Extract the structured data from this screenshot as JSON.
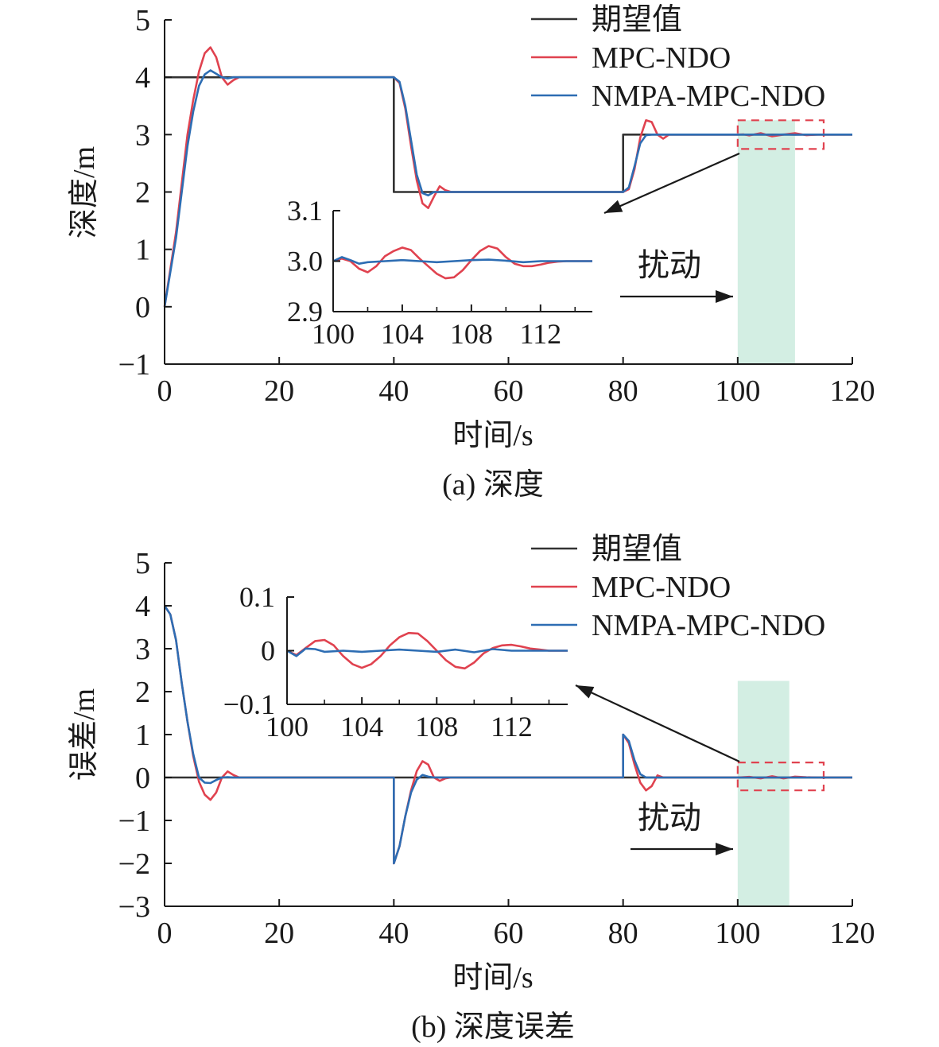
{
  "legend": {
    "items": [
      {
        "label": "期望值",
        "color": "#333333"
      },
      {
        "label": "MPC-NDO",
        "color": "#e0424f"
      },
      {
        "label": "NMPA-MPC-NDO",
        "color": "#2d6db3"
      }
    ]
  },
  "colors": {
    "reference": "#333333",
    "mpc_ndo": "#e0424f",
    "nmpa": "#2d6db3",
    "disturbance_band": "#d3eee3",
    "zoom_box": "#e0424f"
  },
  "chart_data": [
    {
      "id": "a",
      "type": "line",
      "caption": "(a) 深度",
      "xlabel": "时间/s",
      "ylabel": "深度/m",
      "xlim": [
        0,
        120
      ],
      "ylim": [
        -1,
        5
      ],
      "xticks": [
        0,
        20,
        40,
        60,
        80,
        100,
        120
      ],
      "yticks": [
        -1,
        0,
        1,
        2,
        3,
        4,
        5
      ],
      "xtick_labels": [
        "0",
        "20",
        "40",
        "60",
        "80",
        "100",
        "120"
      ],
      "ytick_labels": [
        "−1",
        "0",
        "1",
        "2",
        "3",
        "4",
        "5"
      ],
      "disturbance": {
        "label": "扰动",
        "x_range": [
          100,
          110
        ]
      },
      "zoom_box": {
        "x_range": [
          100,
          115
        ],
        "y_range": [
          2.75,
          3.25
        ]
      },
      "series": [
        {
          "name": "期望值",
          "x": [
            0,
            40,
            40,
            80,
            80,
            120
          ],
          "y": [
            4,
            4,
            2,
            2,
            3,
            3
          ]
        },
        {
          "name": "MPC-NDO",
          "x": [
            0,
            2,
            4,
            5,
            6,
            7,
            8,
            9,
            10,
            11,
            12,
            13,
            14,
            40,
            41,
            42,
            43,
            44,
            45,
            46,
            47,
            48,
            49,
            50,
            80,
            81,
            82,
            83,
            84,
            85,
            86,
            87,
            88,
            100,
            101,
            102,
            104,
            106,
            108,
            110,
            112,
            114,
            115,
            120
          ],
          "y": [
            0,
            1.3,
            3.0,
            3.6,
            4.1,
            4.42,
            4.52,
            4.35,
            4.0,
            3.87,
            3.95,
            4.0,
            4.0,
            4.0,
            3.9,
            3.45,
            2.8,
            2.2,
            1.8,
            1.72,
            1.92,
            2.1,
            2.03,
            2.0,
            2.0,
            2.05,
            2.4,
            2.95,
            3.25,
            3.22,
            3.0,
            2.93,
            3.0,
            3.0,
            3.005,
            2.985,
            3.025,
            2.97,
            3.0,
            3.025,
            2.99,
            3.0,
            3.0,
            3.0
          ]
        },
        {
          "name": "NMPA-MPC-NDO",
          "x": [
            0,
            2,
            4,
            5,
            6,
            7,
            8,
            9,
            10,
            11,
            12,
            40,
            41,
            42,
            43,
            44,
            45,
            46,
            47,
            80,
            81,
            82,
            83,
            84,
            85,
            100,
            102,
            104,
            106,
            108,
            110,
            112,
            114,
            120
          ],
          "y": [
            0,
            1.2,
            2.8,
            3.4,
            3.85,
            4.05,
            4.12,
            4.06,
            4.0,
            3.98,
            4.0,
            4.0,
            3.92,
            3.5,
            2.9,
            2.3,
            1.98,
            1.94,
            2.0,
            2.0,
            2.08,
            2.45,
            2.85,
            2.99,
            3.0,
            3.0,
            3.0,
            3.002,
            2.998,
            3.002,
            2.998,
            3.0,
            3.0,
            3.0
          ]
        }
      ],
      "inset": {
        "xlim": [
          100,
          115
        ],
        "ylim": [
          2.9,
          3.1
        ],
        "xticks": [
          100,
          104,
          108,
          112
        ],
        "yticks": [
          2.9,
          3.0,
          3.1
        ],
        "xtick_labels": [
          "100",
          "104",
          "108",
          "112"
        ],
        "ytick_labels": [
          "2.9",
          "3.0",
          "3.1"
        ],
        "series": [
          {
            "name": "MPC-NDO",
            "x": [
              100,
              100.5,
              101,
              101.5,
              102,
              102.5,
              103,
              103.5,
              104,
              104.5,
              105,
              105.5,
              106,
              106.5,
              107,
              107.5,
              108,
              108.5,
              109,
              109.5,
              110,
              110.5,
              111,
              111.5,
              112,
              112.5,
              113,
              113.5,
              114,
              115
            ],
            "y": [
              3.0,
              3.005,
              3.0,
              2.985,
              2.978,
              2.99,
              3.01,
              3.02,
              3.027,
              3.022,
              3.005,
              2.99,
              2.975,
              2.966,
              2.968,
              2.982,
              3.002,
              3.02,
              3.03,
              3.025,
              3.008,
              2.995,
              2.99,
              2.99,
              2.993,
              2.997,
              2.999,
              3.0,
              3.0,
              3.0
            ]
          },
          {
            "name": "NMPA-MPC-NDO",
            "x": [
              100,
              100.5,
              101,
              101.5,
              102,
              103,
              104,
              105,
              106,
              107,
              108,
              109,
              110,
              111,
              112,
              113,
              114,
              115
            ],
            "y": [
              3.0,
              3.008,
              3.002,
              2.995,
              2.998,
              3.0,
              3.002,
              3.0,
              2.998,
              3.0,
              3.002,
              3.003,
              3.001,
              2.998,
              3.0,
              3.0,
              3.0,
              3.0
            ]
          }
        ]
      }
    },
    {
      "id": "b",
      "type": "line",
      "caption": "(b) 深度误差",
      "xlabel": "时间/s",
      "ylabel": "误差/m",
      "xlim": [
        0,
        120
      ],
      "ylim": [
        -3,
        5
      ],
      "xticks": [
        0,
        20,
        40,
        60,
        80,
        100,
        120
      ],
      "yticks": [
        -3,
        -2,
        -1,
        0,
        1,
        2,
        3,
        4,
        5
      ],
      "xtick_labels": [
        "0",
        "20",
        "40",
        "60",
        "80",
        "100",
        "120"
      ],
      "ytick_labels": [
        "−3",
        "−2",
        "−1",
        "0",
        "1",
        "2",
        "3",
        "4",
        "5"
      ],
      "disturbance": {
        "label": "扰动",
        "x_range": [
          100,
          109
        ]
      },
      "zoom_box": {
        "x_range": [
          100,
          115
        ],
        "y_range": [
          -0.3,
          0.35
        ]
      },
      "series": [
        {
          "name": "期望值",
          "x": [
            0,
            120
          ],
          "y": [
            0,
            0
          ]
        },
        {
          "name": "MPC-NDO",
          "x": [
            0,
            1,
            2,
            3,
            4,
            5,
            6,
            7,
            8,
            9,
            10,
            11,
            12,
            13,
            14,
            40,
            40.01,
            41,
            42,
            43,
            44,
            45,
            46,
            47,
            48,
            49,
            50,
            80,
            80.01,
            81,
            82,
            83,
            84,
            85,
            86,
            87,
            100,
            102,
            104,
            106,
            108,
            110,
            112,
            114,
            120
          ],
          "y": [
            4.0,
            3.8,
            3.2,
            2.2,
            1.3,
            0.5,
            -0.1,
            -0.4,
            -0.52,
            -0.35,
            0.0,
            0.14,
            0.06,
            0.0,
            0.0,
            0.0,
            -2.0,
            -1.6,
            -0.9,
            -0.3,
            0.15,
            0.38,
            0.3,
            0.0,
            -0.08,
            -0.02,
            0.0,
            0.0,
            1.0,
            0.8,
            0.3,
            -0.12,
            -0.3,
            -0.2,
            0.05,
            0.0,
            0.0,
            0.015,
            -0.02,
            0.03,
            -0.02,
            0.02,
            0.005,
            0.0,
            0.0
          ]
        },
        {
          "name": "NMPA-MPC-NDO",
          "x": [
            0,
            1,
            2,
            3,
            4,
            5,
            6,
            7,
            8,
            9,
            10,
            11,
            12,
            40,
            40.01,
            41,
            42,
            43,
            44,
            45,
            46,
            47,
            80,
            80.01,
            81,
            82,
            83,
            84,
            85,
            100,
            120
          ],
          "y": [
            4.0,
            3.8,
            3.2,
            2.2,
            1.3,
            0.55,
            0.0,
            -0.12,
            -0.13,
            -0.06,
            0.0,
            0.01,
            0.0,
            0.0,
            -2.0,
            -1.6,
            -0.9,
            -0.35,
            -0.05,
            0.06,
            0.02,
            0.0,
            0.0,
            1.0,
            0.85,
            0.4,
            0.08,
            0.0,
            0.0,
            0.0,
            0.0
          ]
        }
      ],
      "inset": {
        "xlim": [
          100,
          115
        ],
        "ylim": [
          -0.1,
          0.1
        ],
        "xticks": [
          100,
          104,
          108,
          112
        ],
        "yticks": [
          -0.1,
          0,
          0.1
        ],
        "xtick_labels": [
          "100",
          "104",
          "108",
          "112"
        ],
        "ytick_labels": [
          "−0.1",
          "0",
          "0.1"
        ],
        "series": [
          {
            "name": "MPC-NDO",
            "x": [
              100,
              100.5,
              101,
              101.5,
              102,
              102.5,
              103,
              103.5,
              104,
              104.5,
              105,
              105.5,
              106,
              106.5,
              107,
              107.5,
              108,
              108.5,
              109,
              109.5,
              110,
              110.5,
              111,
              111.5,
              112,
              112.5,
              113,
              113.5,
              114,
              115
            ],
            "y": [
              0.0,
              -0.008,
              0.005,
              0.018,
              0.02,
              0.01,
              -0.01,
              -0.025,
              -0.032,
              -0.025,
              -0.01,
              0.01,
              0.025,
              0.033,
              0.032,
              0.018,
              0.0,
              -0.018,
              -0.03,
              -0.033,
              -0.022,
              -0.005,
              0.005,
              0.01,
              0.011,
              0.008,
              0.004,
              0.002,
              0.0,
              0.0
            ]
          },
          {
            "name": "NMPA-MPC-NDO",
            "x": [
              100,
              100.5,
              101,
              101.5,
              102,
              103,
              104,
              105,
              106,
              107,
              108,
              109,
              110,
              111,
              112,
              113,
              115
            ],
            "y": [
              0.0,
              -0.01,
              0.004,
              0.003,
              -0.002,
              0.0,
              -0.002,
              0.0,
              0.002,
              0.0,
              -0.002,
              0.002,
              -0.003,
              0.003,
              0.0,
              0.0,
              0.0
            ]
          }
        ]
      }
    }
  ]
}
